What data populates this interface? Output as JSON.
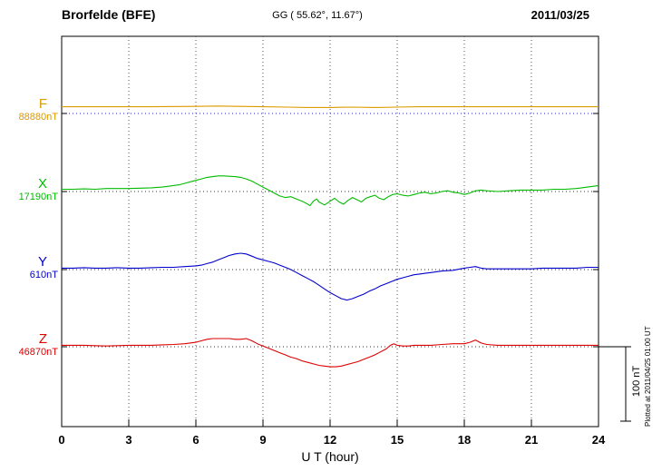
{
  "header": {
    "station": "Brorfelde (BFE)",
    "coordinates": "GG ( 55.62°,  11.67°)",
    "date": "2011/03/25"
  },
  "plotted_note": "Plotted at 2011/04/25 01:00 UT",
  "chart_data": {
    "type": "line",
    "title": "Brorfelde (BFE) magnetogram 2011/03/25",
    "xlabel": "U T (hour)",
    "x_range": [
      0,
      24
    ],
    "x_ticks": [
      0,
      3,
      6,
      9,
      12,
      15,
      18,
      21,
      24
    ],
    "grid": "vertical-dotted",
    "scale_bar": {
      "label": "100 nT",
      "nT": 100
    },
    "series": [
      {
        "name": "F",
        "color": "#dd9900",
        "baseline_label": "88880nT",
        "baseline_color": "#2222cc",
        "unit": "nT",
        "points": [
          [
            0,
            9
          ],
          [
            2,
            9
          ],
          [
            4,
            9
          ],
          [
            6,
            9.5
          ],
          [
            7,
            10
          ],
          [
            8,
            9.5
          ],
          [
            9,
            9
          ],
          [
            10,
            8.5
          ],
          [
            11,
            8
          ],
          [
            12,
            8
          ],
          [
            13,
            8.5
          ],
          [
            14,
            8
          ],
          [
            15,
            8.5
          ],
          [
            16,
            9
          ],
          [
            18,
            9
          ],
          [
            20,
            9
          ],
          [
            22,
            9
          ],
          [
            24,
            9
          ]
        ]
      },
      {
        "name": "X",
        "color": "#00bb00",
        "baseline_label": "17190nT",
        "baseline_color": "#333333",
        "unit": "nT",
        "points": [
          [
            0,
            3
          ],
          [
            0.5,
            3
          ],
          [
            1,
            3.5
          ],
          [
            1.5,
            3
          ],
          [
            2,
            4
          ],
          [
            2.5,
            4
          ],
          [
            3,
            4
          ],
          [
            3.5,
            4.5
          ],
          [
            4,
            5
          ],
          [
            4.5,
            6
          ],
          [
            5,
            8
          ],
          [
            5.25,
            9
          ],
          [
            5.5,
            11
          ],
          [
            5.75,
            13
          ],
          [
            6,
            15
          ],
          [
            6.25,
            17
          ],
          [
            6.5,
            19
          ],
          [
            6.75,
            20
          ],
          [
            7,
            21
          ],
          [
            7.25,
            21
          ],
          [
            7.5,
            20.5
          ],
          [
            7.75,
            20
          ],
          [
            8,
            19
          ],
          [
            8.25,
            17
          ],
          [
            8.5,
            14
          ],
          [
            8.75,
            10
          ],
          [
            9,
            6
          ],
          [
            9.25,
            2
          ],
          [
            9.5,
            -2
          ],
          [
            9.75,
            -6
          ],
          [
            10,
            -8
          ],
          [
            10.25,
            -7
          ],
          [
            10.5,
            -10
          ],
          [
            10.75,
            -13
          ],
          [
            11,
            -17
          ],
          [
            11.1,
            -19
          ],
          [
            11.25,
            -13
          ],
          [
            11.4,
            -10
          ],
          [
            11.5,
            -14
          ],
          [
            11.75,
            -18
          ],
          [
            12,
            -13
          ],
          [
            12.2,
            -9
          ],
          [
            12.4,
            -14
          ],
          [
            12.6,
            -17
          ],
          [
            12.8,
            -12
          ],
          [
            13,
            -8
          ],
          [
            13.2,
            -11
          ],
          [
            13.4,
            -14
          ],
          [
            13.6,
            -9
          ],
          [
            13.8,
            -7
          ],
          [
            14,
            -5
          ],
          [
            14.2,
            -9
          ],
          [
            14.4,
            -11
          ],
          [
            14.6,
            -7
          ],
          [
            14.8,
            -4
          ],
          [
            15,
            -3
          ],
          [
            15.25,
            -5
          ],
          [
            15.5,
            -6
          ],
          [
            15.75,
            -4
          ],
          [
            16,
            -2
          ],
          [
            16.25,
            -1
          ],
          [
            16.5,
            -3
          ],
          [
            16.75,
            -2
          ],
          [
            17,
            0
          ],
          [
            17.25,
            1
          ],
          [
            17.5,
            -1
          ],
          [
            17.75,
            -2
          ],
          [
            18,
            -4
          ],
          [
            18.25,
            -2
          ],
          [
            18.5,
            1
          ],
          [
            18.75,
            2
          ],
          [
            19,
            1
          ],
          [
            19.5,
            0
          ],
          [
            20,
            1
          ],
          [
            20.5,
            2
          ],
          [
            21,
            2
          ],
          [
            21.5,
            2
          ],
          [
            22,
            3
          ],
          [
            22.5,
            3
          ],
          [
            23,
            4
          ],
          [
            23.25,
            5
          ],
          [
            23.5,
            6
          ],
          [
            23.75,
            7
          ],
          [
            24,
            8
          ]
        ]
      },
      {
        "name": "Y",
        "color": "#0000cc",
        "baseline_label": "610nT",
        "baseline_color": "#333333",
        "unit": "nT",
        "points": [
          [
            0,
            2
          ],
          [
            0.5,
            2
          ],
          [
            1,
            2.5
          ],
          [
            1.5,
            2
          ],
          [
            2,
            2
          ],
          [
            2.5,
            2.5
          ],
          [
            3,
            2
          ],
          [
            3.5,
            2
          ],
          [
            4,
            2.5
          ],
          [
            4.5,
            3
          ],
          [
            5,
            3
          ],
          [
            5.5,
            4
          ],
          [
            6,
            5
          ],
          [
            6.25,
            6
          ],
          [
            6.5,
            8
          ],
          [
            6.75,
            10
          ],
          [
            7,
            13
          ],
          [
            7.25,
            16
          ],
          [
            7.5,
            19
          ],
          [
            7.75,
            21
          ],
          [
            8,
            22
          ],
          [
            8.25,
            21
          ],
          [
            8.5,
            18
          ],
          [
            8.75,
            15
          ],
          [
            9,
            13
          ],
          [
            9.25,
            11
          ],
          [
            9.5,
            9
          ],
          [
            9.75,
            6
          ],
          [
            10,
            3
          ],
          [
            10.25,
            0
          ],
          [
            10.5,
            -4
          ],
          [
            10.75,
            -8
          ],
          [
            11,
            -12
          ],
          [
            11.25,
            -16
          ],
          [
            11.5,
            -21
          ],
          [
            11.75,
            -26
          ],
          [
            12,
            -31
          ],
          [
            12.25,
            -35
          ],
          [
            12.5,
            -39
          ],
          [
            12.75,
            -41
          ],
          [
            13,
            -39
          ],
          [
            13.25,
            -36
          ],
          [
            13.5,
            -33
          ],
          [
            13.75,
            -29
          ],
          [
            14,
            -26
          ],
          [
            14.25,
            -22
          ],
          [
            14.5,
            -19
          ],
          [
            14.75,
            -16
          ],
          [
            15,
            -13
          ],
          [
            15.25,
            -11
          ],
          [
            15.5,
            -9
          ],
          [
            15.75,
            -7
          ],
          [
            16,
            -6
          ],
          [
            16.25,
            -5
          ],
          [
            16.5,
            -4
          ],
          [
            17,
            -2
          ],
          [
            17.5,
            -1
          ],
          [
            18,
            2
          ],
          [
            18.25,
            3
          ],
          [
            18.5,
            4
          ],
          [
            18.75,
            2
          ],
          [
            19,
            1
          ],
          [
            19.5,
            1
          ],
          [
            20,
            1
          ],
          [
            20.5,
            1
          ],
          [
            21,
            1
          ],
          [
            21.5,
            2
          ],
          [
            22,
            2
          ],
          [
            22.5,
            2
          ],
          [
            23,
            2
          ],
          [
            23.5,
            3
          ],
          [
            24,
            3
          ]
        ]
      },
      {
        "name": "Z",
        "color": "#dd0000",
        "baseline_label": "46870nT",
        "baseline_color": "#333333",
        "unit": "nT",
        "points": [
          [
            0,
            2
          ],
          [
            0.5,
            2
          ],
          [
            1,
            2
          ],
          [
            1.5,
            1.5
          ],
          [
            2,
            1
          ],
          [
            2.5,
            1.5
          ],
          [
            3,
            2
          ],
          [
            3.5,
            2
          ],
          [
            4,
            2
          ],
          [
            4.5,
            2.5
          ],
          [
            5,
            3
          ],
          [
            5.5,
            4
          ],
          [
            6,
            6
          ],
          [
            6.25,
            8
          ],
          [
            6.5,
            10
          ],
          [
            6.75,
            11
          ],
          [
            7,
            11
          ],
          [
            7.25,
            11
          ],
          [
            7.5,
            11
          ],
          [
            7.75,
            10
          ],
          [
            8,
            10
          ],
          [
            8.25,
            11
          ],
          [
            8.5,
            8
          ],
          [
            8.75,
            4
          ],
          [
            9,
            1
          ],
          [
            9.25,
            -2
          ],
          [
            9.5,
            -5
          ],
          [
            9.75,
            -8
          ],
          [
            10,
            -11
          ],
          [
            10.25,
            -14
          ],
          [
            10.5,
            -16
          ],
          [
            10.75,
            -19
          ],
          [
            11,
            -21
          ],
          [
            11.25,
            -23
          ],
          [
            11.5,
            -25
          ],
          [
            11.75,
            -26
          ],
          [
            12,
            -27
          ],
          [
            12.25,
            -27
          ],
          [
            12.5,
            -26
          ],
          [
            12.75,
            -24
          ],
          [
            13,
            -22
          ],
          [
            13.25,
            -20
          ],
          [
            13.5,
            -17
          ],
          [
            13.75,
            -14
          ],
          [
            14,
            -11
          ],
          [
            14.25,
            -7
          ],
          [
            14.5,
            -3
          ],
          [
            14.7,
            2
          ],
          [
            14.85,
            4
          ],
          [
            15,
            2
          ],
          [
            15.25,
            1
          ],
          [
            15.5,
            1
          ],
          [
            15.75,
            2
          ],
          [
            16,
            2
          ],
          [
            16.5,
            2
          ],
          [
            17,
            3
          ],
          [
            17.5,
            4
          ],
          [
            18,
            4
          ],
          [
            18.25,
            6
          ],
          [
            18.5,
            9
          ],
          [
            18.75,
            5
          ],
          [
            19,
            3
          ],
          [
            19.5,
            2
          ],
          [
            20,
            2
          ],
          [
            20.5,
            2
          ],
          [
            21,
            2
          ],
          [
            21.5,
            2
          ],
          [
            22,
            2
          ],
          [
            22.5,
            2
          ],
          [
            23,
            2
          ],
          [
            23.5,
            2
          ],
          [
            24,
            2
          ]
        ]
      }
    ]
  }
}
